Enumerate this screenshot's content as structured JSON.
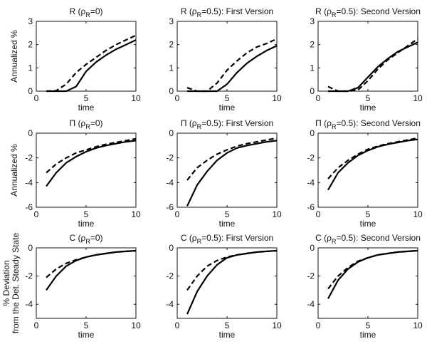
{
  "chart_data": [
    {
      "type": "line",
      "title": {
        "pre": "R (ρ",
        "sub": "R",
        "post": "=0)"
      },
      "xlabel": "time",
      "ylabel": [
        "Annualized %"
      ],
      "xlim": [
        0,
        10
      ],
      "ylim": [
        0,
        3
      ],
      "xticks": [
        0,
        5,
        10
      ],
      "yticks": [
        0,
        1,
        2,
        3
      ],
      "x": [
        1,
        2,
        3,
        4,
        5,
        6,
        7,
        8,
        9,
        10
      ],
      "series": [
        {
          "name": "solid",
          "values": [
            0,
            0,
            0,
            0.2,
            0.85,
            1.25,
            1.55,
            1.8,
            2.0,
            2.2
          ]
        },
        {
          "name": "dashed",
          "values": [
            0,
            0.02,
            0.3,
            0.8,
            1.15,
            1.45,
            1.75,
            2.0,
            2.2,
            2.4
          ]
        }
      ]
    },
    {
      "type": "line",
      "title": {
        "pre": "R (ρ",
        "sub": "R",
        "post": "=0.5): First Version"
      },
      "xlabel": "time",
      "ylabel": [],
      "xlim": [
        0,
        10
      ],
      "ylim": [
        0,
        3
      ],
      "xticks": [
        0,
        5,
        10
      ],
      "yticks": [
        0,
        1,
        2,
        3
      ],
      "x": [
        1,
        2,
        3,
        4,
        5,
        6,
        7,
        8,
        9,
        10
      ],
      "series": [
        {
          "name": "solid",
          "values": [
            0,
            0,
            0,
            0,
            0.3,
            0.8,
            1.2,
            1.5,
            1.75,
            1.95
          ]
        },
        {
          "name": "dashed",
          "values": [
            0.15,
            0,
            0,
            0.35,
            0.9,
            1.3,
            1.65,
            1.9,
            2.05,
            2.25
          ]
        }
      ]
    },
    {
      "type": "line",
      "title": {
        "pre": "R (ρ",
        "sub": "R",
        "post": "=0.5): Second Version"
      },
      "xlabel": "time",
      "ylabel": [],
      "xlim": [
        0,
        10
      ],
      "ylim": [
        0,
        3
      ],
      "xticks": [
        0,
        5,
        10
      ],
      "yticks": [
        0,
        1,
        2,
        3
      ],
      "x": [
        1,
        2,
        3,
        4,
        5,
        6,
        7,
        8,
        9,
        10
      ],
      "series": [
        {
          "name": "solid",
          "values": [
            0,
            0,
            0,
            0.15,
            0.6,
            1.05,
            1.4,
            1.7,
            1.9,
            2.1
          ]
        },
        {
          "name": "dashed",
          "values": [
            0.2,
            0,
            0,
            0.05,
            0.45,
            0.95,
            1.35,
            1.65,
            1.95,
            2.25
          ]
        }
      ]
    },
    {
      "type": "line",
      "title": {
        "pre": "Π (ρ",
        "sub": "R",
        "post": "=0)"
      },
      "xlabel": "time",
      "ylabel": [
        "Annualized %"
      ],
      "xlim": [
        0,
        10
      ],
      "ylim": [
        -6,
        0
      ],
      "xticks": [
        0,
        5,
        10
      ],
      "yticks": [
        -6,
        -4,
        -2,
        0
      ],
      "x": [
        1,
        2,
        3,
        4,
        5,
        6,
        7,
        8,
        9,
        10
      ],
      "series": [
        {
          "name": "solid",
          "values": [
            -4.3,
            -3.2,
            -2.4,
            -1.9,
            -1.5,
            -1.2,
            -1.0,
            -0.85,
            -0.7,
            -0.6
          ]
        },
        {
          "name": "dashed",
          "values": [
            -3.2,
            -2.5,
            -2.0,
            -1.6,
            -1.35,
            -1.1,
            -0.9,
            -0.75,
            -0.6,
            -0.45
          ]
        }
      ]
    },
    {
      "type": "line",
      "title": {
        "pre": "Π (ρ",
        "sub": "R",
        "post": "=0.5): First Version"
      },
      "xlabel": "time",
      "ylabel": [],
      "xlim": [
        0,
        10
      ],
      "ylim": [
        -6,
        0
      ],
      "xticks": [
        0,
        5,
        10
      ],
      "yticks": [
        -6,
        -4,
        -2,
        0
      ],
      "x": [
        1,
        2,
        3,
        4,
        5,
        6,
        7,
        8,
        9,
        10
      ],
      "series": [
        {
          "name": "solid",
          "values": [
            -5.9,
            -4.2,
            -3.1,
            -2.2,
            -1.6,
            -1.2,
            -1.0,
            -0.85,
            -0.7,
            -0.6
          ]
        },
        {
          "name": "dashed",
          "values": [
            -3.8,
            -2.8,
            -2.2,
            -1.7,
            -1.35,
            -1.05,
            -0.85,
            -0.7,
            -0.55,
            -0.4
          ]
        }
      ]
    },
    {
      "type": "line",
      "title": {
        "pre": "Π (ρ",
        "sub": "R",
        "post": "=0.5): Second Version"
      },
      "xlabel": "time",
      "ylabel": [],
      "xlim": [
        0,
        10
      ],
      "ylim": [
        -6,
        0
      ],
      "xticks": [
        0,
        5,
        10
      ],
      "yticks": [
        -6,
        -4,
        -2,
        0
      ],
      "x": [
        1,
        2,
        3,
        4,
        5,
        6,
        7,
        8,
        9,
        10
      ],
      "series": [
        {
          "name": "solid",
          "values": [
            -4.6,
            -3.2,
            -2.4,
            -1.8,
            -1.4,
            -1.1,
            -0.9,
            -0.75,
            -0.6,
            -0.5
          ]
        },
        {
          "name": "dashed",
          "values": [
            -3.7,
            -2.8,
            -2.2,
            -1.7,
            -1.3,
            -1.05,
            -0.85,
            -0.7,
            -0.55,
            -0.4
          ]
        }
      ]
    },
    {
      "type": "line",
      "title": {
        "pre": "C (ρ",
        "sub": "R",
        "post": "=0)"
      },
      "xlabel": "time",
      "ylabel": [
        "% Deviation",
        "from the Det. Steady State"
      ],
      "xlim": [
        0,
        10
      ],
      "ylim": [
        -5,
        0
      ],
      "xticks": [
        0,
        5,
        10
      ],
      "yticks": [
        -4,
        -2,
        0
      ],
      "x": [
        1,
        2,
        3,
        4,
        5,
        6,
        7,
        8,
        9,
        10
      ],
      "series": [
        {
          "name": "solid",
          "values": [
            -3.0,
            -2.0,
            -1.3,
            -0.9,
            -0.65,
            -0.5,
            -0.4,
            -0.3,
            -0.25,
            -0.2
          ]
        },
        {
          "name": "dashed",
          "values": [
            -2.1,
            -1.5,
            -1.1,
            -0.85,
            -0.65,
            -0.5,
            -0.4,
            -0.3,
            -0.25,
            -0.2
          ]
        }
      ]
    },
    {
      "type": "line",
      "title": {
        "pre": "C (ρ",
        "sub": "R",
        "post": "=0.5): First Version"
      },
      "xlabel": "time",
      "ylabel": [],
      "xlim": [
        0,
        10
      ],
      "ylim": [
        -5,
        0
      ],
      "xticks": [
        0,
        5,
        10
      ],
      "yticks": [
        -4,
        -2,
        0
      ],
      "x": [
        1,
        2,
        3,
        4,
        5,
        6,
        7,
        8,
        9,
        10
      ],
      "series": [
        {
          "name": "solid",
          "values": [
            -4.7,
            -3.1,
            -2.0,
            -1.2,
            -0.7,
            -0.5,
            -0.4,
            -0.3,
            -0.25,
            -0.2
          ]
        },
        {
          "name": "dashed",
          "values": [
            -3.0,
            -2.0,
            -1.3,
            -0.9,
            -0.65,
            -0.5,
            -0.4,
            -0.3,
            -0.25,
            -0.2
          ]
        }
      ]
    },
    {
      "type": "line",
      "title": {
        "pre": "C (ρ",
        "sub": "R",
        "post": "=0.5): Second Version"
      },
      "xlabel": "time",
      "ylabel": [],
      "xlim": [
        0,
        10
      ],
      "ylim": [
        -5,
        0
      ],
      "xticks": [
        0,
        5,
        10
      ],
      "yticks": [
        -4,
        -2,
        0
      ],
      "x": [
        1,
        2,
        3,
        4,
        5,
        6,
        7,
        8,
        9,
        10
      ],
      "series": [
        {
          "name": "solid",
          "values": [
            -3.6,
            -2.3,
            -1.5,
            -1.0,
            -0.7,
            -0.5,
            -0.4,
            -0.3,
            -0.25,
            -0.2
          ]
        },
        {
          "name": "dashed",
          "values": [
            -2.9,
            -2.0,
            -1.4,
            -0.95,
            -0.7,
            -0.5,
            -0.4,
            -0.3,
            -0.25,
            -0.2
          ]
        }
      ]
    }
  ]
}
